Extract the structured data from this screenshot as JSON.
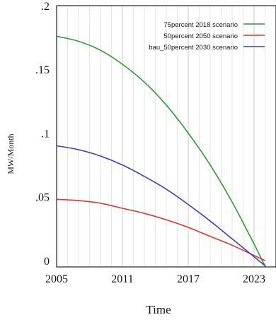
{
  "chart_data": {
    "type": "line",
    "xlabel": "Time",
    "ylabel": "MW/Month",
    "xlim": [
      2005,
      2025
    ],
    "ylim": [
      -0.005,
      0.2
    ],
    "x_ticks": [
      {
        "value": 2005,
        "label": "2005"
      },
      {
        "value": 2011,
        "label": "2011"
      },
      {
        "value": 2017,
        "label": "2017"
      },
      {
        "value": 2023,
        "label": "2023"
      }
    ],
    "y_ticks": [
      {
        "value": 0,
        "label": "0"
      },
      {
        "value": 0.05,
        "label": ".05"
      },
      {
        "value": 0.1,
        "label": ".1"
      },
      {
        "value": 0.15,
        "label": ".15"
      },
      {
        "value": 0.2,
        "label": ".2"
      }
    ],
    "grid": "vertical",
    "legend_position": "top-right",
    "series": [
      {
        "name": "75percent 2018 scenario",
        "color": "#2e9e2e",
        "x": [
          2005,
          2007,
          2009,
          2011,
          2013,
          2015,
          2017,
          2019,
          2021,
          2023,
          2024,
          2024.5
        ],
        "values": [
          0.176,
          0.172,
          0.165,
          0.154,
          0.14,
          0.122,
          0.1,
          0.075,
          0.046,
          0.013,
          -0.004,
          -0.008
        ]
      },
      {
        "name": "50percent 2050 scenario",
        "color": "#e8322c",
        "x": [
          2005,
          2007,
          2009,
          2011,
          2013,
          2015,
          2017,
          2019,
          2021,
          2023,
          2024
        ],
        "values": [
          0.048,
          0.047,
          0.045,
          0.041,
          0.037,
          0.032,
          0.026,
          0.019,
          0.012,
          0.004,
          0.0
        ]
      },
      {
        "name": "bau_50percent 2030 scenario",
        "color": "#3b3fc4",
        "x": [
          2005,
          2007,
          2009,
          2011,
          2013,
          2015,
          2017,
          2019,
          2021,
          2023,
          2024
        ],
        "values": [
          0.09,
          0.087,
          0.082,
          0.075,
          0.066,
          0.056,
          0.044,
          0.031,
          0.017,
          0.003,
          -0.004
        ]
      }
    ]
  }
}
